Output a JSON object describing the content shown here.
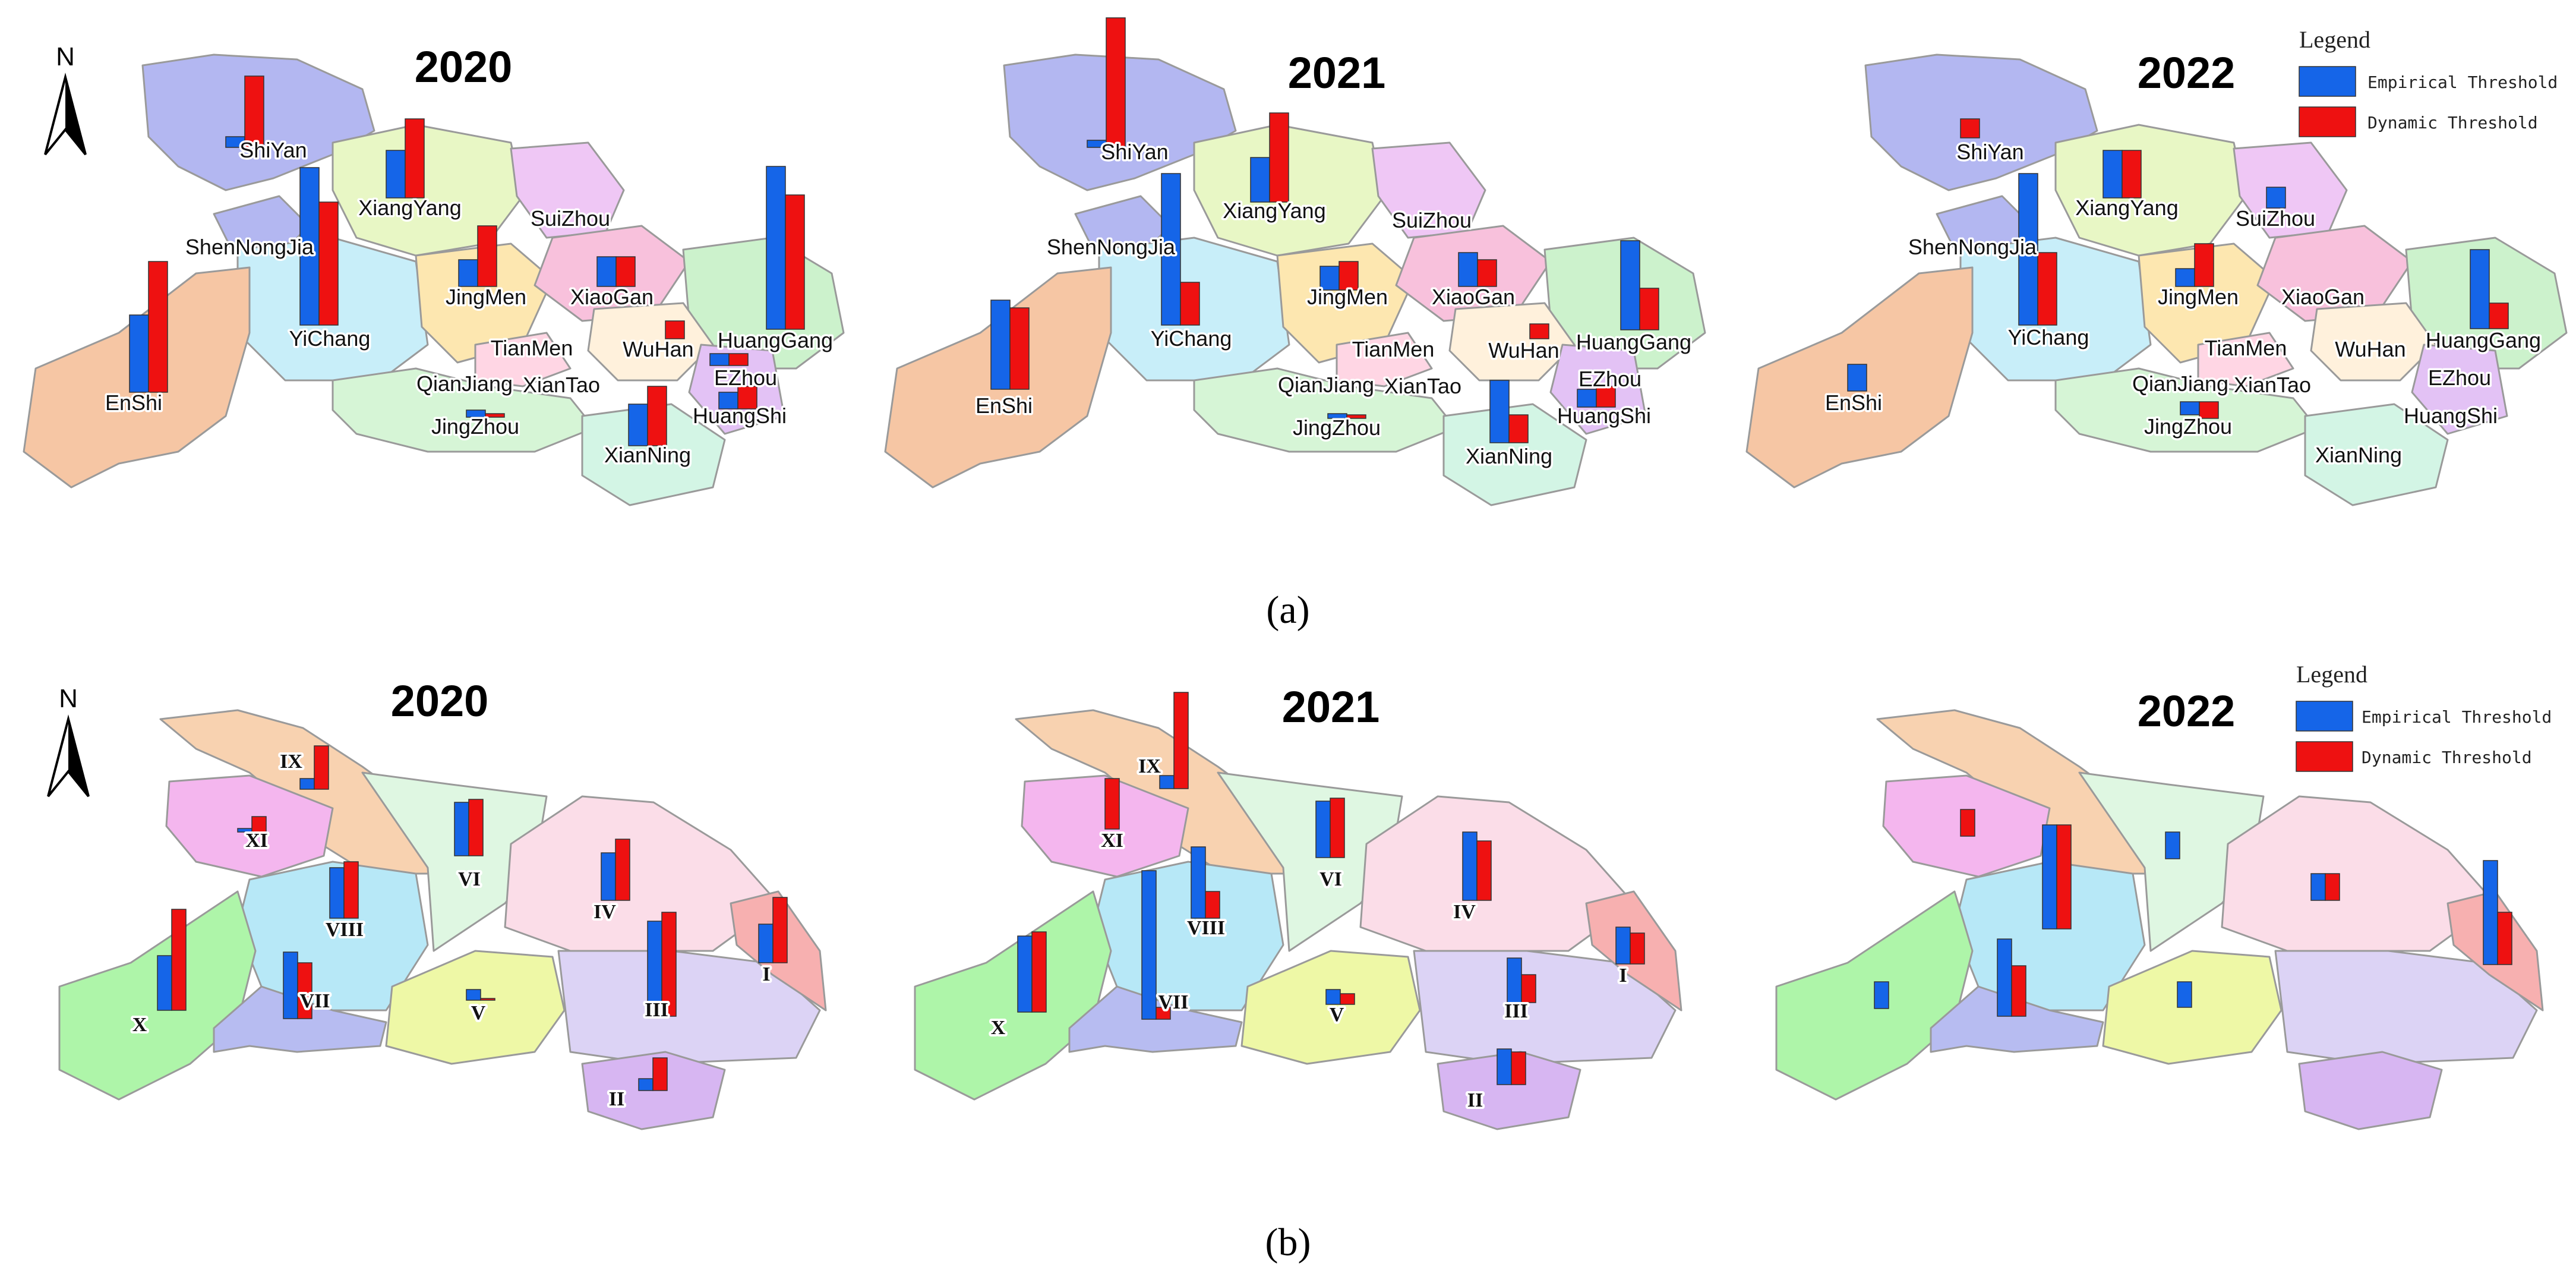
{
  "colors": {
    "empirical": "#1565e8",
    "dynamic": "#ee1111"
  },
  "north_label": "N",
  "panels": [
    {
      "caption": "(a)",
      "legend": {
        "title": "Legend",
        "items": [
          {
            "key": "empirical",
            "label": "Empirical Threshold"
          },
          {
            "key": "dynamic",
            "label": "Dynamic Threshold"
          }
        ]
      },
      "maps": [
        {
          "year": "2020",
          "labels": [
            "ShiYan",
            "XiangYang",
            "SuiZhou",
            "ShenNongJia",
            "JingMen",
            "XiaoGan",
            "YiChang",
            "HuangGang",
            "EnShi",
            "TianMen",
            "WuHan",
            "QianJiang",
            "XianTao",
            "EZhou",
            "JingZhou",
            "HuangShi",
            "XianNing"
          ]
        },
        {
          "year": "2021",
          "labels": [
            "ShiYan",
            "XiangYang",
            "SuiZhou",
            "ShenNongJia",
            "JingMen",
            "XiaoGan",
            "YiChang",
            "HuangGang",
            "EnShi",
            "TianMen",
            "WuHan",
            "QianJiang",
            "XianTao",
            "EZhou",
            "JingZhou",
            "HuangShi",
            "XianNing"
          ]
        },
        {
          "year": "2022",
          "labels": [
            "ShiYan",
            "XiangYang",
            "SuiZhou",
            "ShenNongJia",
            "JingMen",
            "XiaoGan",
            "YiChang",
            "HuangGang",
            "EnShi",
            "TianMen",
            "WuHan",
            "QianJiang",
            "XianTao",
            "EZhou",
            "JingZhou",
            "HuangShi",
            "XianNing"
          ]
        }
      ]
    },
    {
      "caption": "(b)",
      "legend": {
        "title": "Legend",
        "items": [
          {
            "key": "empirical",
            "label": "Empirical Threshold"
          },
          {
            "key": "dynamic",
            "label": "Dynamic Threshold"
          }
        ]
      },
      "maps": [
        {
          "year": "2020",
          "labels": [
            "IX",
            "XI",
            "VI",
            "IV",
            "VIII",
            "X",
            "VII",
            "V",
            "III",
            "I",
            "II"
          ]
        },
        {
          "year": "2021",
          "labels": [
            "IX",
            "XI",
            "VI",
            "IV",
            "VIII",
            "X",
            "VII",
            "V",
            "III",
            "I",
            "II"
          ]
        },
        {
          "year": "2022",
          "labels": []
        }
      ]
    }
  ]
}
